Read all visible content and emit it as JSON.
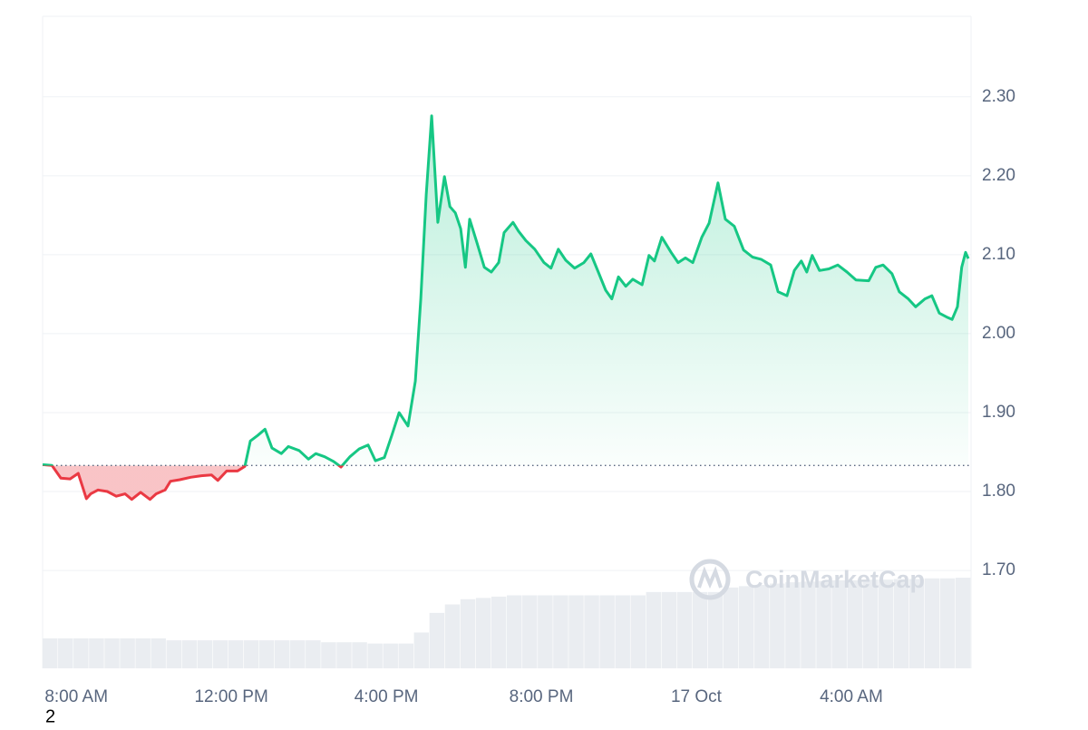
{
  "chart_data": {
    "type": "line",
    "x": [
      -0.87,
      -0.63,
      -0.4,
      -0.16,
      0.05,
      0.26,
      0.37,
      0.56,
      0.8,
      1.03,
      1.26,
      1.43,
      1.66,
      1.9,
      2.06,
      2.29,
      2.43,
      2.67,
      2.95,
      3.23,
      3.49,
      3.65,
      3.88,
      4.16,
      4.35,
      4.49,
      4.68,
      4.87,
      5.05,
      5.29,
      5.47,
      5.75,
      5.99,
      6.18,
      6.41,
      6.64,
      6.83,
      7.06,
      7.3,
      7.53,
      7.72,
      7.95,
      8.14,
      8.33,
      8.56,
      8.75,
      8.89,
      9.03,
      9.17,
      9.33,
      9.5,
      9.64,
      9.78,
      9.92,
      10.04,
      10.15,
      10.34,
      10.53,
      10.71,
      10.9,
      11.04,
      11.27,
      11.41,
      11.6,
      11.83,
      12.07,
      12.25,
      12.44,
      12.63,
      12.86,
      13.1,
      13.28,
      13.47,
      13.66,
      13.82,
      13.99,
      14.18,
      14.36,
      14.6,
      14.78,
      14.92,
      15.11,
      15.35,
      15.53,
      15.72,
      15.91,
      16.14,
      16.33,
      16.56,
      16.75,
      16.98,
      17.22,
      17.45,
      17.68,
      17.92,
      18.11,
      18.34,
      18.53,
      18.71,
      18.85,
      18.99,
      19.18,
      19.42,
      19.65,
      19.89,
      20.12,
      20.45,
      20.63,
      20.82,
      21.05,
      21.24,
      21.47,
      21.66,
      21.9,
      22.08,
      22.27,
      22.46,
      22.6,
      22.74,
      22.85,
      22.95,
      23.02
    ],
    "series": [
      {
        "values": [
          1.834,
          1.833,
          1.817,
          1.816,
          1.823,
          1.791,
          1.797,
          1.802,
          1.8,
          1.794,
          1.797,
          1.79,
          1.799,
          1.79,
          1.797,
          1.802,
          1.813,
          1.815,
          1.818,
          1.82,
          1.821,
          1.814,
          1.826,
          1.826,
          1.832,
          1.864,
          1.871,
          1.879,
          1.855,
          1.848,
          1.857,
          1.852,
          1.841,
          1.848,
          1.844,
          1.838,
          1.831,
          1.844,
          1.854,
          1.859,
          1.839,
          1.843,
          1.871,
          1.9,
          1.883,
          1.94,
          2.044,
          2.176,
          2.276,
          2.141,
          2.199,
          2.161,
          2.153,
          2.133,
          2.084,
          2.145,
          2.115,
          2.084,
          2.078,
          2.09,
          2.128,
          2.141,
          2.13,
          2.118,
          2.107,
          2.09,
          2.083,
          2.107,
          2.093,
          2.083,
          2.09,
          2.101,
          2.078,
          2.055,
          2.044,
          2.072,
          2.06,
          2.069,
          2.062,
          2.099,
          2.092,
          2.122,
          2.103,
          2.09,
          2.096,
          2.09,
          2.122,
          2.14,
          2.191,
          2.145,
          2.136,
          2.106,
          2.097,
          2.094,
          2.087,
          2.053,
          2.048,
          2.08,
          2.092,
          2.078,
          2.099,
          2.08,
          2.082,
          2.087,
          2.078,
          2.068,
          2.067,
          2.084,
          2.087,
          2.076,
          2.053,
          2.044,
          2.034,
          2.044,
          2.048,
          2.026,
          2.021,
          2.018,
          2.034,
          2.084,
          2.103,
          2.095
        ],
        "color": "#16c784",
        "down_color": "#ea3943"
      }
    ],
    "baseline": 1.833,
    "xlim": [
      -0.87,
      23.09
    ],
    "xticks": [
      {
        "value": 0,
        "label": "8:00 AM"
      },
      {
        "value": 4,
        "label": "12:00 PM"
      },
      {
        "value": 8,
        "label": "4:00 PM"
      },
      {
        "value": 12,
        "label": "8:00 PM"
      },
      {
        "value": 16,
        "label": "17 Oct"
      },
      {
        "value": 20,
        "label": "4:00 AM"
      }
    ],
    "ylim": [
      1.576,
      2.402
    ],
    "yticks": [
      {
        "value": 1.7,
        "label": "1.70"
      },
      {
        "value": 1.8,
        "label": "1.80"
      },
      {
        "value": 1.9,
        "label": "1.90"
      },
      {
        "value": 2.0,
        "label": "2.00"
      },
      {
        "value": 2.1,
        "label": "2.10"
      },
      {
        "value": 2.2,
        "label": "2.20"
      },
      {
        "value": 2.3,
        "label": "2.30"
      }
    ],
    "grid": true,
    "volume": {
      "values": [
        4.6,
        4.6,
        4.6,
        4.6,
        4.6,
        4.6,
        4.6,
        4.6,
        4.3,
        4.3,
        4.3,
        4.3,
        4.3,
        4.3,
        4.3,
        4.3,
        4.3,
        4.3,
        4.0,
        4.0,
        4.0,
        3.8,
        3.8,
        3.8,
        5.5,
        8.5,
        9.8,
        10.6,
        10.8,
        11.0,
        11.2,
        11.2,
        11.2,
        11.2,
        11.2,
        11.2,
        11.2,
        11.2,
        11.2,
        11.7,
        11.7,
        11.7,
        11.7,
        11.7,
        12.4,
        12.6,
        12.8,
        13.0,
        13.2,
        13.3,
        13.4,
        13.5,
        13.5,
        13.6,
        13.6,
        13.7,
        13.7,
        13.8,
        13.8,
        13.9
      ],
      "color": "#eaedf1",
      "ylim": [
        0,
        100
      ]
    },
    "watermark": "CoinMarketCap"
  },
  "corner_label": "2"
}
